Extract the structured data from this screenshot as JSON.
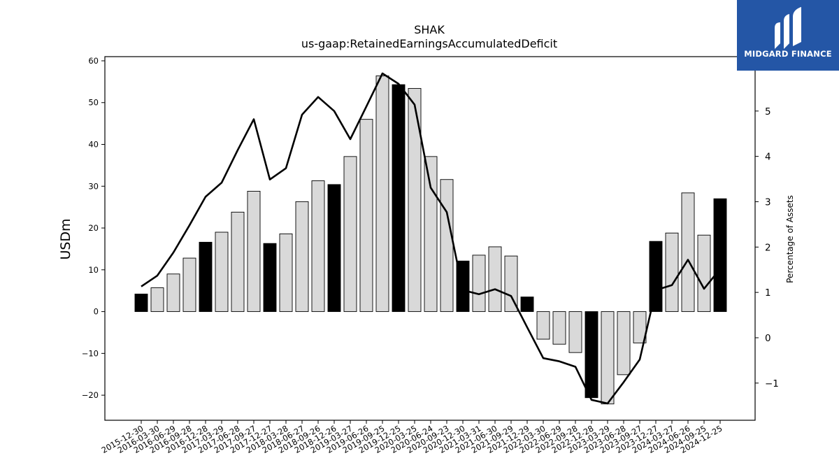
{
  "brand": {
    "name": "MIDGARD FINANCE",
    "icon": "midgard-logo-icon",
    "color": "#2456a6"
  },
  "chart_data": {
    "type": "bar",
    "title": "SHAK",
    "subtitle": "us-gaap:RetainedEarningsAccumulatedDeficit",
    "ylabel": "USDm",
    "y2label": "Percentage of Assets",
    "ylim": [
      -26,
      61
    ],
    "y2lim": [
      -1.82,
      6.2
    ],
    "yticks": [
      -20,
      -10,
      0,
      10,
      20,
      30,
      40,
      50,
      60
    ],
    "y2ticks": [
      -1,
      0,
      1,
      2,
      3,
      4,
      5
    ],
    "categories": [
      "2015-12-30",
      "2016-03-30",
      "2016-06-29",
      "2016-09-28",
      "2016-12-28",
      "2017-03-29",
      "2017-06-28",
      "2017-09-27",
      "2017-12-27",
      "2018-03-28",
      "2018-06-27",
      "2018-09-26",
      "2018-12-26",
      "2019-03-27",
      "2019-06-26",
      "2019-09-25",
      "2019-12-25",
      "2020-03-25",
      "2020-06-24",
      "2020-09-23",
      "2020-12-30",
      "2021-03-31",
      "2021-06-30",
      "2021-09-29",
      "2021-12-29",
      "2022-03-30",
      "2022-06-29",
      "2022-09-28",
      "2022-12-28",
      "2023-03-29",
      "2023-06-28",
      "2023-09-27",
      "2023-12-27",
      "2024-03-27",
      "2024-06-26",
      "2024-09-25",
      "2024-12-25"
    ],
    "series": [
      {
        "type": "bar",
        "values": [
          4.2,
          5.7,
          9.0,
          12.8,
          16.6,
          19.0,
          23.8,
          28.8,
          16.3,
          18.6,
          26.3,
          31.3,
          30.4,
          37.1,
          46.0,
          56.4,
          54.3,
          53.4,
          37.1,
          31.6,
          12.1,
          13.5,
          15.5,
          13.3,
          3.5,
          -6.6,
          -7.8,
          -9.8,
          -20.6,
          -22.1,
          -15.1,
          -7.5,
          16.8,
          18.8,
          28.4,
          18.3,
          27.0
        ],
        "annual_color": "#000000",
        "quarter_color": "#d9d9d9"
      },
      {
        "type": "line",
        "axis": "right",
        "values": [
          1.13,
          1.37,
          1.88,
          2.48,
          3.11,
          3.42,
          4.14,
          4.82,
          3.49,
          3.74,
          4.92,
          5.31,
          5.0,
          4.38,
          5.1,
          5.83,
          5.6,
          5.14,
          3.31,
          2.77,
          1.05,
          0.96,
          1.07,
          0.92,
          0.23,
          -0.45,
          -0.52,
          -0.64,
          -1.37,
          -1.45,
          -0.98,
          -0.48,
          1.05,
          1.16,
          1.72,
          1.08,
          1.52
        ],
        "color": "#000000"
      }
    ],
    "annual_indices": [
      0,
      4,
      8,
      12,
      16,
      20,
      24,
      28,
      32,
      36
    ]
  }
}
